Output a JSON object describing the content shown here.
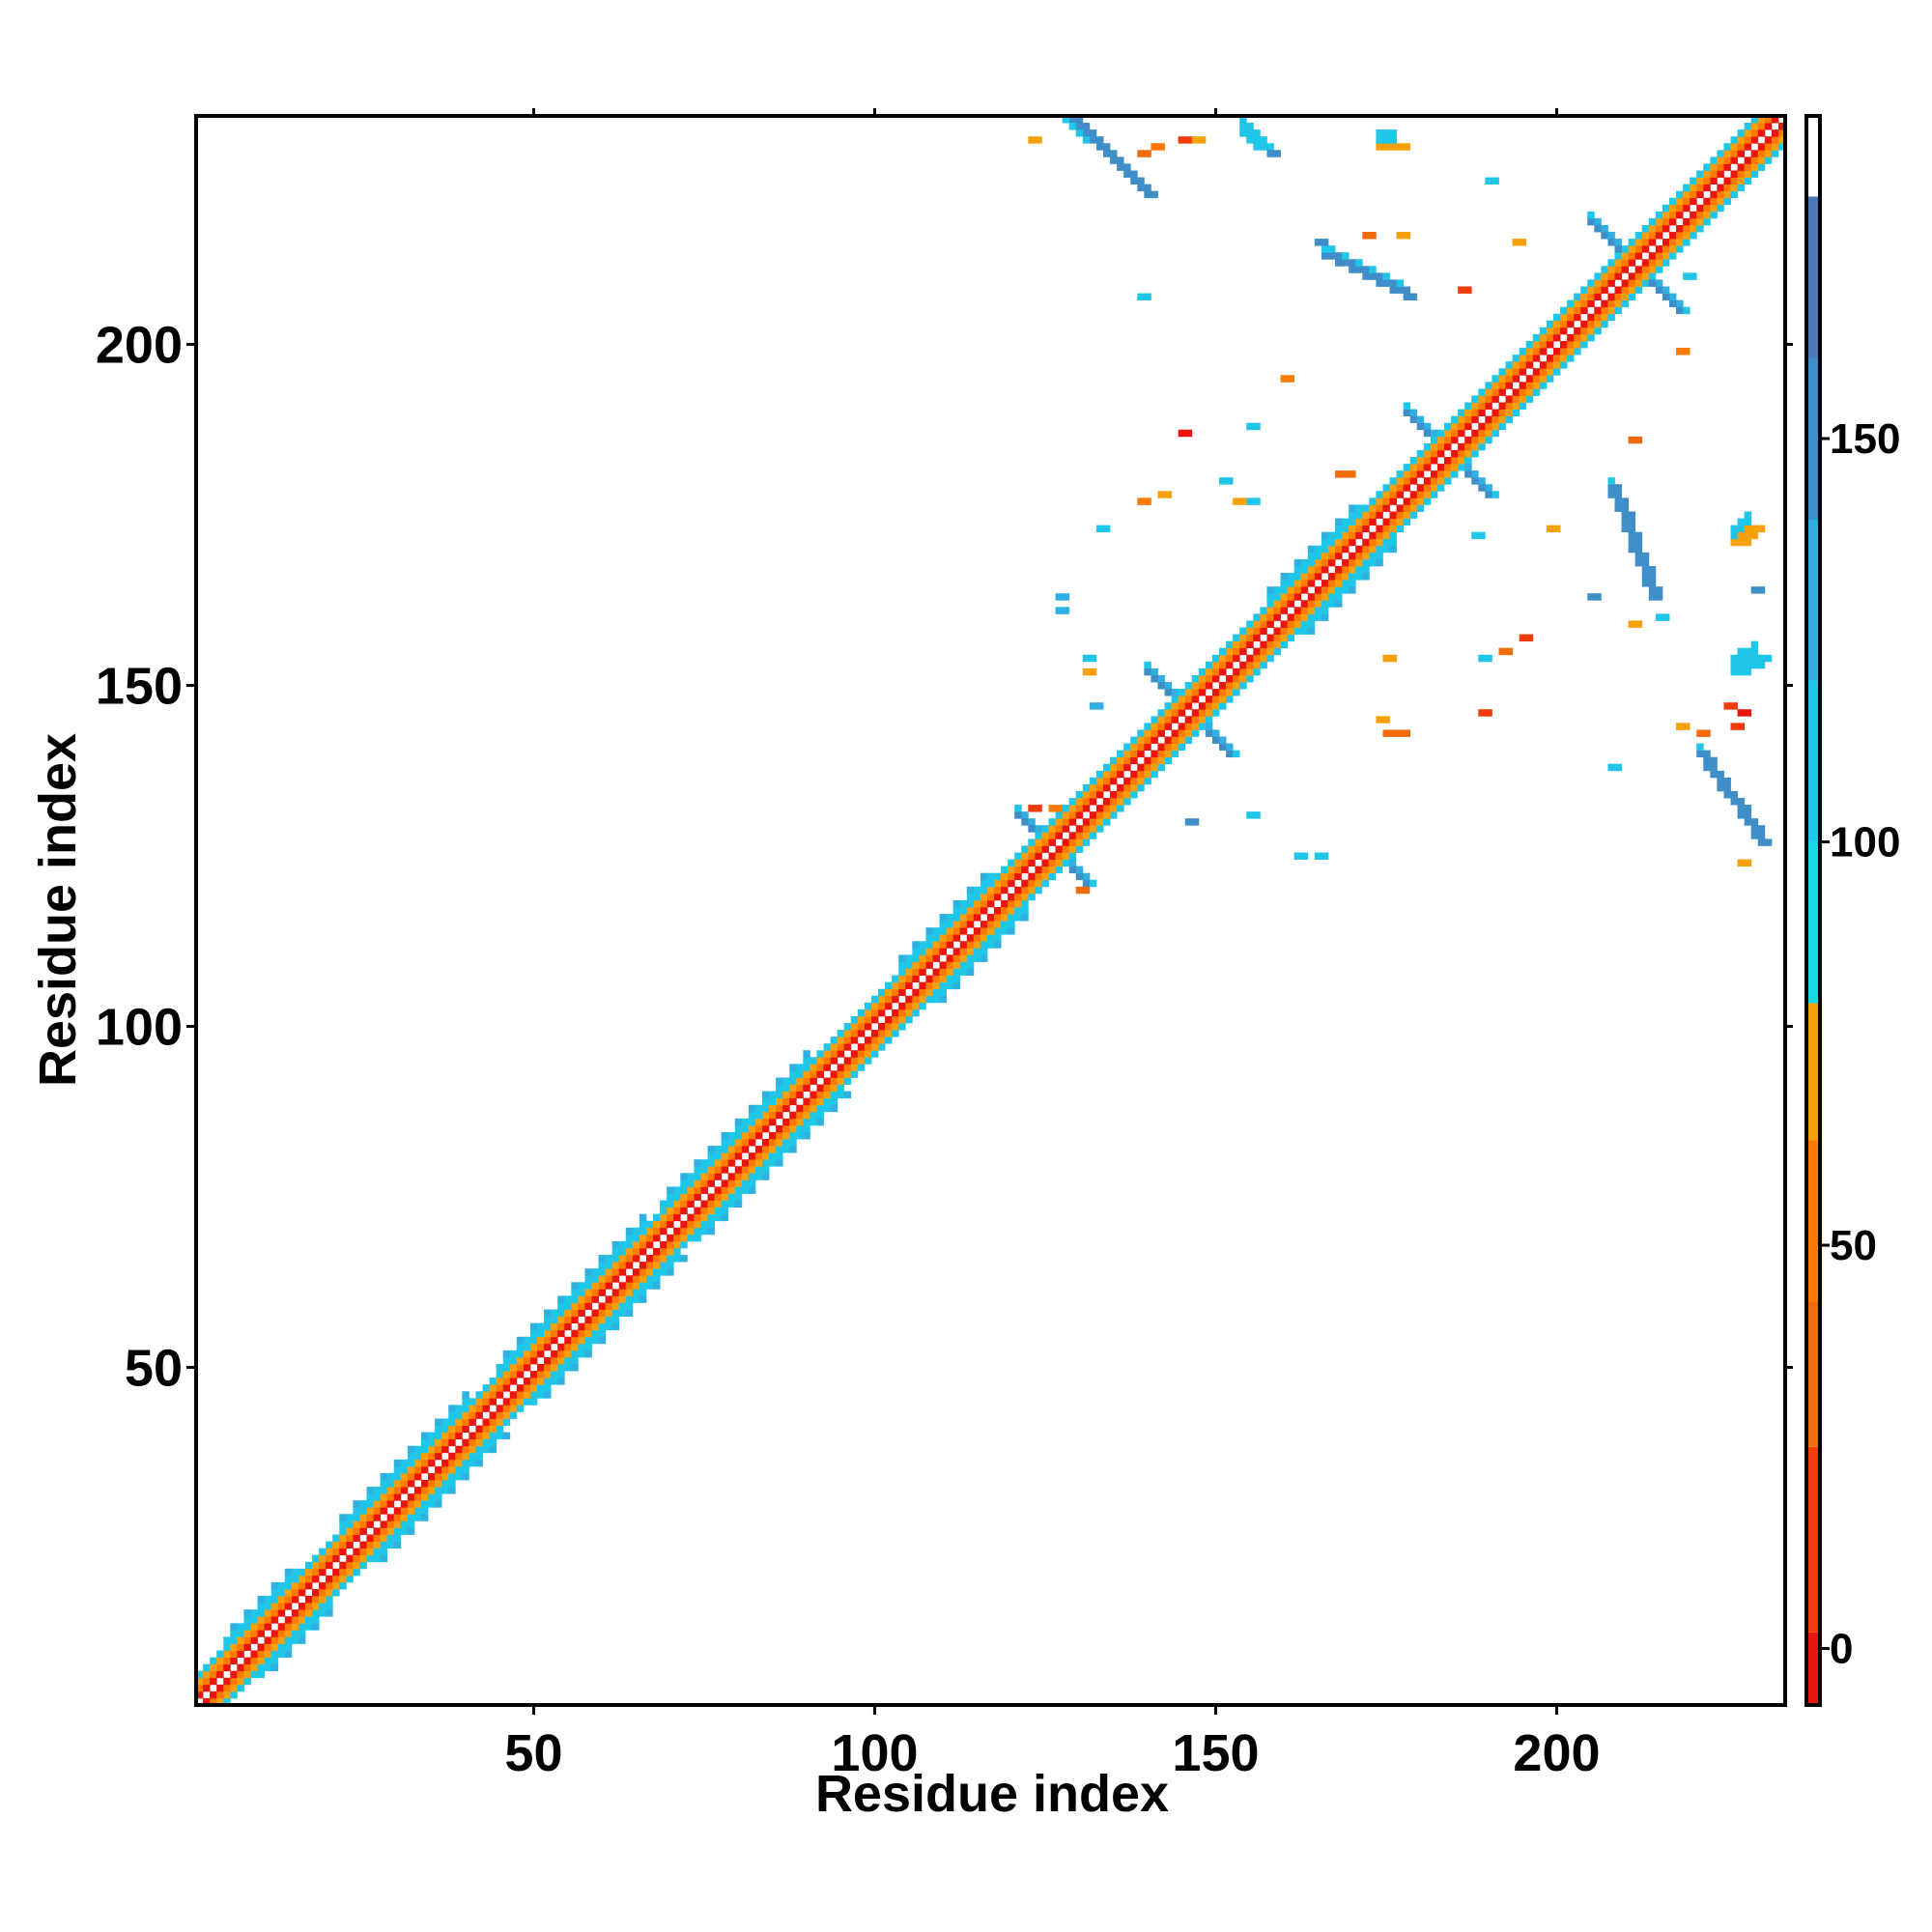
{
  "chart_data": {
    "type": "heatmap",
    "title": "",
    "xlabel": "Residue index",
    "ylabel": "Residue index",
    "xlim": [
      1,
      233
    ],
    "ylim": [
      1,
      233
    ],
    "x_ticks": [
      50,
      100,
      150,
      200
    ],
    "y_ticks": [
      50,
      100,
      150,
      200
    ],
    "colorbar": {
      "range": [
        -7,
        180
      ],
      "ticks": [
        0,
        50,
        100,
        150
      ],
      "bands": [
        {
          "from": -7,
          "to": 2,
          "color": "#e8160f"
        },
        {
          "from": 2,
          "to": 25,
          "color": "#f03c0a"
        },
        {
          "from": 25,
          "to": 43,
          "color": "#f16a0c"
        },
        {
          "from": 43,
          "to": 63,
          "color": "#ff7a00"
        },
        {
          "from": 63,
          "to": 80,
          "color": "#f6a10c"
        },
        {
          "from": 80,
          "to": 100,
          "color": "#16d9e6"
        },
        {
          "from": 100,
          "to": 120,
          "color": "#20c6e8"
        },
        {
          "from": 120,
          "to": 140,
          "color": "#2fb0e0"
        },
        {
          "from": 140,
          "to": 160,
          "color": "#3f8ec8"
        },
        {
          "from": 160,
          "to": 180,
          "color": "#4a79b6"
        },
        {
          "from": 180,
          "to": 190,
          "color": "#ffffff"
        }
      ]
    },
    "diagonal_bands": [
      {
        "offset": 1,
        "color": "#e8160f"
      },
      {
        "offset": 2,
        "color": "#ff7a00"
      },
      {
        "offset": 3,
        "color": "#f6a10c"
      },
      {
        "offset": 4,
        "color": "#20c6e8"
      }
    ],
    "helix_segments": [
      [
        5,
        15
      ],
      [
        22,
        40
      ],
      [
        45,
        66
      ],
      [
        69,
        90
      ],
      [
        104,
        117
      ],
      [
        158,
        171
      ]
    ],
    "strand_segments": [
      [
        121,
        131
      ],
      [
        140,
        152
      ],
      [
        178,
        190
      ],
      [
        205,
        218
      ]
    ],
    "off_diagonal_contacts": [
      {
        "x1": 129,
        "y1": 233,
        "x2": 140,
        "y2": 222,
        "color": "#3f8ec8",
        "width": 2
      },
      {
        "x1": 166,
        "y1": 213,
        "x2": 178,
        "y2": 207,
        "color": "#3f8ec8",
        "width": 2
      },
      {
        "x1": 208,
        "y1": 179,
        "x2": 214,
        "y2": 163,
        "color": "#3f8ec8",
        "width": 2
      },
      {
        "x1": 221,
        "y1": 140,
        "x2": 230,
        "y2": 127,
        "color": "#3f8ec8",
        "width": 2
      },
      {
        "x1": 128,
        "y1": 233,
        "x2": 131,
        "y2": 230,
        "color": "#20c6e8",
        "width": 2
      },
      {
        "x1": 154,
        "y1": 231,
        "x2": 156,
        "y2": 229,
        "color": "#20c6e8",
        "width": 3
      },
      {
        "x1": 174,
        "y1": 229,
        "x2": 176,
        "y2": 229,
        "color": "#f6a10c",
        "width": 3
      },
      {
        "x1": 226,
        "y1": 171,
        "x2": 228,
        "y2": 173,
        "color": "#f6a10c",
        "width": 3
      },
      {
        "x1": 226,
        "y1": 152,
        "x2": 229,
        "y2": 154,
        "color": "#20c6e8",
        "width": 3
      },
      {
        "x1": 168,
        "y1": 181,
        "x2": 170,
        "y2": 181,
        "color": "#f16a0c",
        "width": 1
      },
      {
        "x1": 175,
        "y1": 143,
        "x2": 178,
        "y2": 143,
        "color": "#f16a0c",
        "width": 1
      }
    ],
    "scattered_contacts": [
      [
        123,
        230,
        "#f6a10c"
      ],
      [
        139,
        228,
        "#f16a0c"
      ],
      [
        141,
        229,
        "#ff7a00"
      ],
      [
        145,
        230,
        "#f03c0a"
      ],
      [
        147,
        230,
        "#f6a10c"
      ],
      [
        158,
        228,
        "#3f8ec8"
      ],
      [
        194,
        215,
        "#f6a10c"
      ],
      [
        190,
        224,
        "#20c6e8"
      ],
      [
        186,
        208,
        "#f03c0a"
      ],
      [
        177,
        216,
        "#f6a10c"
      ],
      [
        139,
        207,
        "#20c6e8"
      ],
      [
        165,
        215,
        "#3f8ec8"
      ],
      [
        219,
        210,
        "#20c6e8"
      ],
      [
        218,
        199,
        "#ff7a00"
      ],
      [
        211,
        186,
        "#f16a0c"
      ],
      [
        199,
        173,
        "#f6a10c"
      ],
      [
        155,
        177,
        "#20c6e8"
      ],
      [
        139,
        177,
        "#ff7a00"
      ],
      [
        142,
        178,
        "#f6a10c"
      ],
      [
        133,
        173,
        "#20c6e8"
      ],
      [
        145,
        187,
        "#e8160f"
      ],
      [
        155,
        188,
        "#20c6e8"
      ],
      [
        160,
        195,
        "#ff7a00"
      ],
      [
        127,
        163,
        "#2fb0e0"
      ],
      [
        127,
        161,
        "#2fb0e0"
      ],
      [
        131,
        154,
        "#20c6e8"
      ],
      [
        131,
        152,
        "#f6a10c"
      ],
      [
        132,
        147,
        "#2fb0e0"
      ],
      [
        175,
        154,
        "#f6a10c"
      ],
      [
        189,
        154,
        "#20c6e8"
      ],
      [
        192,
        155,
        "#f16a0c"
      ],
      [
        195,
        157,
        "#f03c0a"
      ],
      [
        189,
        146,
        "#f03c0a"
      ],
      [
        174,
        145,
        "#f6a10c"
      ],
      [
        208,
        138,
        "#20c6e8"
      ],
      [
        146,
        130,
        "#3f8ec8"
      ],
      [
        155,
        131,
        "#20c6e8"
      ],
      [
        162,
        125,
        "#20c6e8"
      ],
      [
        165,
        125,
        "#20c6e8"
      ],
      [
        123,
        132,
        "#f03c0a"
      ],
      [
        130,
        120,
        "#f16a0c"
      ],
      [
        227,
        124,
        "#f6a10c"
      ],
      [
        225,
        147,
        "#f03c0a"
      ],
      [
        227,
        146,
        "#e8160f"
      ],
      [
        188,
        172,
        "#20c6e8"
      ],
      [
        205,
        163,
        "#3f8ec8"
      ],
      [
        229,
        164,
        "#3f8ec8"
      ],
      [
        211,
        159,
        "#f6a10c"
      ],
      [
        215,
        160,
        "#20c6e8"
      ],
      [
        218,
        144,
        "#f6a10c"
      ],
      [
        221,
        143,
        "#f16a0c"
      ],
      [
        226,
        144,
        "#f03c0a"
      ],
      [
        172,
        216,
        "#f16a0c"
      ],
      [
        151,
        180,
        "#20c6e8"
      ],
      [
        153,
        177,
        "#f6a10c"
      ],
      [
        126,
        132,
        "#ff7a00"
      ]
    ]
  }
}
